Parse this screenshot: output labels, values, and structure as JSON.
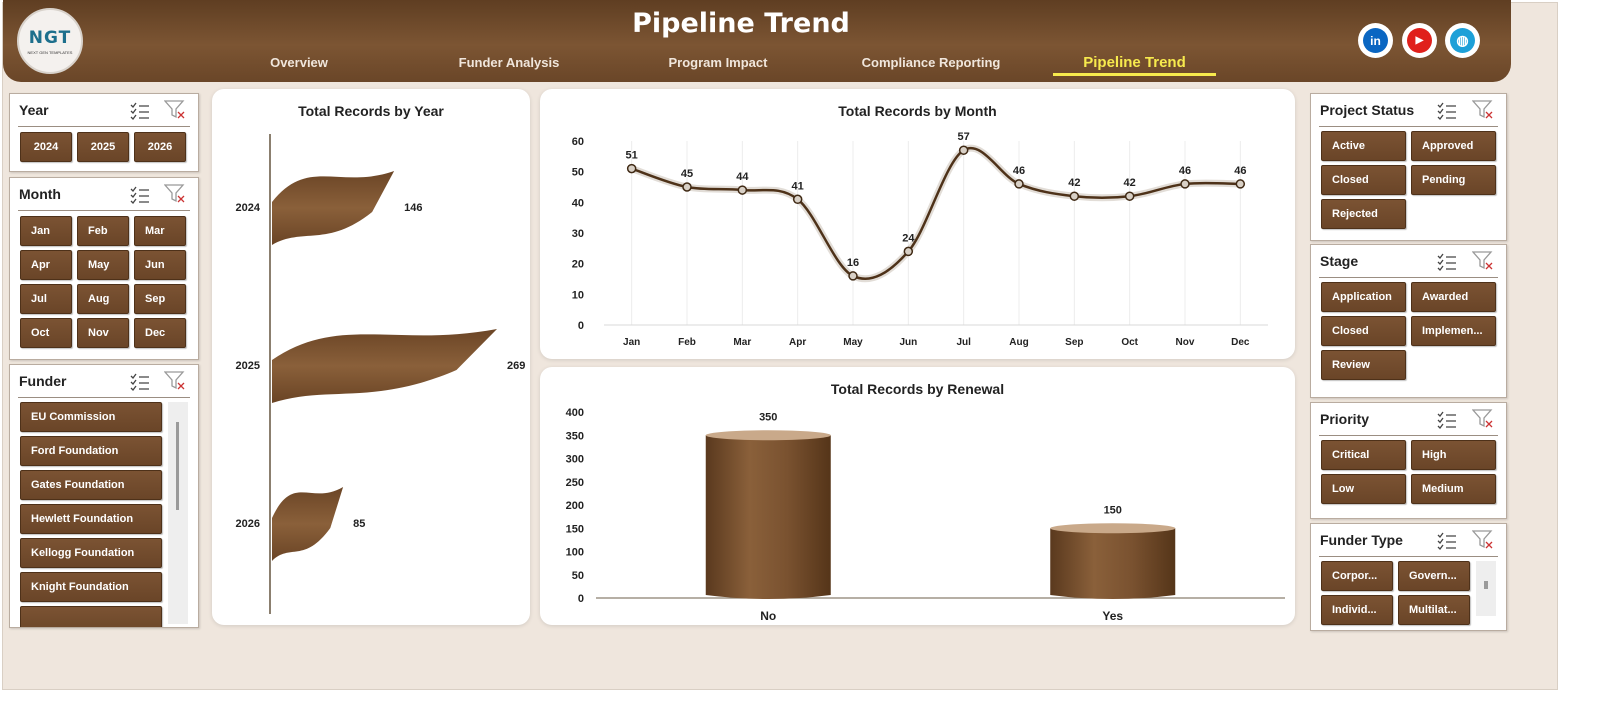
{
  "header": {
    "title": "Pipeline Trend",
    "logo_text": "NGT",
    "logo_subtext": "NEXT GEN TEMPLATES",
    "nav": [
      "Overview",
      "Funder Analysis",
      "Program Impact",
      "Compliance Reporting",
      "Pipeline Trend"
    ],
    "active_nav": "Pipeline Trend",
    "social": [
      {
        "name": "linkedin",
        "glyph": "in",
        "color": "#0a66c2"
      },
      {
        "name": "youtube",
        "glyph": "▶",
        "color": "#e0201b"
      },
      {
        "name": "website",
        "glyph": "◍",
        "color": "#1da0d8"
      }
    ]
  },
  "slicers": {
    "year": {
      "title": "Year",
      "items": [
        "2024",
        "2025",
        "2026"
      ]
    },
    "month": {
      "title": "Month",
      "items": [
        "Jan",
        "Feb",
        "Mar",
        "Apr",
        "May",
        "Jun",
        "Jul",
        "Aug",
        "Sep",
        "Oct",
        "Nov",
        "Dec"
      ]
    },
    "funder": {
      "title": "Funder",
      "items": [
        "EU Commission",
        "Ford Foundation",
        "Gates Foundation",
        "Hewlett Foundation",
        "Kellogg Foundation",
        "Knight Foundation",
        ""
      ]
    },
    "project_status": {
      "title": "Project Status",
      "items": [
        "Active",
        "Approved",
        "Closed",
        "Pending",
        "Rejected"
      ]
    },
    "stage": {
      "title": "Stage",
      "items": [
        "Application",
        "Awarded",
        "Closed",
        "Implemen...",
        "Review"
      ]
    },
    "priority": {
      "title": "Priority",
      "items": [
        "Critical",
        "High",
        "Low",
        "Medium"
      ]
    },
    "funder_type": {
      "title": "Funder Type",
      "items": [
        "Corpor...",
        "Govern...",
        "Individ...",
        "Multilat..."
      ]
    }
  },
  "colors": {
    "brown": "#7c5533",
    "dark_brown": "#5f3e22",
    "accent_yellow": "#f7ea4d",
    "bg": "#efe6dd"
  },
  "chart_data": [
    {
      "type": "bar",
      "orientation": "horizontal",
      "title": "Total Records by Year",
      "categories": [
        "2024",
        "2025",
        "2026"
      ],
      "values": [
        146,
        269,
        85
      ]
    },
    {
      "type": "line",
      "title": "Total Records by Month",
      "categories": [
        "Jan",
        "Feb",
        "Mar",
        "Apr",
        "May",
        "Jun",
        "Jul",
        "Aug",
        "Sep",
        "Oct",
        "Nov",
        "Dec"
      ],
      "values": [
        51,
        45,
        44,
        41,
        16,
        24,
        57,
        46,
        42,
        42,
        46,
        46
      ],
      "ylim": [
        0,
        60
      ],
      "yticks": [
        "0",
        "10",
        "20",
        "30",
        "40",
        "50",
        "60"
      ],
      "grid": "vertical"
    },
    {
      "type": "bar",
      "title": "Total Records by Renewal",
      "categories": [
        "No",
        "Yes"
      ],
      "values": [
        350,
        150
      ],
      "ylim": [
        0,
        400
      ],
      "yticks": [
        "0",
        "50",
        "100",
        "150",
        "200",
        "250",
        "300",
        "350",
        "400"
      ]
    }
  ]
}
